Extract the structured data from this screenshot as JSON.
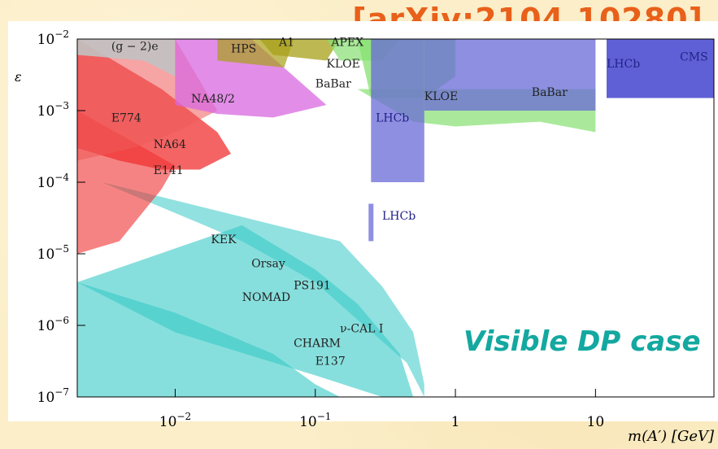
{
  "reference": "[arXiv:2104.10280]",
  "case_label": "Visible DP case",
  "chart_data": {
    "type": "area",
    "title": "",
    "xlabel": "m(A′) [GeV]",
    "ylabel": "ε",
    "xscale": "log",
    "yscale": "log",
    "xlim": [
      0.002,
      70
    ],
    "ylim": [
      1e-07,
      0.01
    ],
    "xticks": [
      {
        "value": 0.01,
        "label": "10^-2"
      },
      {
        "value": 0.1,
        "label": "10^-1"
      },
      {
        "value": 1,
        "label": "1"
      },
      {
        "value": 10,
        "label": "10"
      }
    ],
    "yticks": [
      {
        "value": 0.01,
        "label": "10^-2"
      },
      {
        "value": 0.001,
        "label": "10^-3"
      },
      {
        "value": 0.0001,
        "label": "10^-4"
      },
      {
        "value": 1e-05,
        "label": "10^-5"
      },
      {
        "value": 1e-06,
        "label": "10^-6"
      },
      {
        "value": 1e-07,
        "label": "10^-7"
      }
    ],
    "colors": {
      "beam_dump": "#37c9c7",
      "e774": "#f03030",
      "na64": "#ee5a5a",
      "gm2": "#c2c2c2",
      "na48": "#d868e0",
      "hps": "#a8a018",
      "babar": "#86e070",
      "lhcb": "#6a6ad8",
      "cms": "#3838cc",
      "overlap": "#3c7080"
    },
    "regions": [
      {
        "label": "E137",
        "points": [
          [
            0.002,
            1e-07
          ],
          [
            0.002,
            4e-06
          ],
          [
            0.01,
            1.5e-06
          ],
          [
            0.05,
            4e-07
          ],
          [
            0.1,
            1.5e-07
          ],
          [
            0.15,
            1e-07
          ]
        ]
      },
      {
        "label": "CHARM",
        "points": [
          [
            0.002,
            4e-06
          ],
          [
            0.01,
            8e-07
          ],
          [
            0.1,
            2e-07
          ],
          [
            0.3,
            1e-07
          ],
          [
            0.5,
            1e-07
          ],
          [
            0.4,
            4e-07
          ],
          [
            0.2,
            2e-06
          ],
          [
            0.1,
            6e-06
          ],
          [
            0.03,
            2.5e-05
          ]
        ]
      },
      {
        "label": "ν-CAL I",
        "points": [
          [
            0.003,
            0.0001
          ],
          [
            0.03,
            1.5e-05
          ],
          [
            0.1,
            4e-06
          ],
          [
            0.2,
            1.2e-06
          ],
          [
            0.45,
            3e-07
          ],
          [
            0.6,
            1e-07
          ],
          [
            0.6,
            1.5e-07
          ],
          [
            0.5,
            8e-07
          ],
          [
            0.3,
            3.5e-06
          ],
          [
            0.15,
            1.5e-05
          ]
        ]
      },
      {
        "label": "E774",
        "points": [
          [
            0.002,
            0.01
          ],
          [
            0.008,
            0.002
          ],
          [
            0.02,
            0.0005
          ],
          [
            0.025,
            0.00025
          ],
          [
            0.015,
            0.00015
          ],
          [
            0.008,
            0.00015
          ],
          [
            0.004,
            0.0002
          ],
          [
            0.002,
            0.0003
          ]
        ]
      },
      {
        "label": "E141",
        "points": [
          [
            0.002,
            0.001
          ],
          [
            0.006,
            0.0003
          ],
          [
            0.01,
            0.00017
          ],
          [
            0.008,
            8e-05
          ],
          [
            0.004,
            1.5e-05
          ],
          [
            0.002,
            1e-05
          ]
        ]
      },
      {
        "label": "NA64",
        "points": [
          [
            0.002,
            0.01
          ],
          [
            0.01,
            0.01
          ],
          [
            0.02,
            0.001
          ],
          [
            0.01,
            0.0005
          ],
          [
            0.005,
            0.0003
          ],
          [
            0.002,
            0.0002
          ]
        ]
      },
      {
        "label": "(g − 2)e",
        "points": [
          [
            0.002,
            0.01
          ],
          [
            0.01,
            0.01
          ],
          [
            0.01,
            0.003
          ],
          [
            0.006,
            0.005
          ],
          [
            0.002,
            0.006
          ]
        ]
      },
      {
        "label": "NA48/2",
        "points": [
          [
            0.01,
            0.01
          ],
          [
            0.035,
            0.01
          ],
          [
            0.12,
            0.0012
          ],
          [
            0.05,
            0.0008
          ],
          [
            0.02,
            0.0009
          ],
          [
            0.01,
            0.0012
          ]
        ]
      },
      {
        "label": "HPS",
        "points": [
          [
            0.02,
            0.01
          ],
          [
            0.07,
            0.01
          ],
          [
            0.06,
            0.004
          ],
          [
            0.02,
            0.005
          ]
        ]
      },
      {
        "label": "A1",
        "points": [
          [
            0.04,
            0.01
          ],
          [
            0.15,
            0.01
          ],
          [
            0.12,
            0.005
          ],
          [
            0.05,
            0.006
          ]
        ]
      },
      {
        "label": "APEX",
        "points": [
          [
            0.12,
            0.01
          ],
          [
            0.4,
            0.01
          ],
          [
            0.3,
            0.005
          ],
          [
            0.15,
            0.005
          ]
        ]
      },
      {
        "label": "KLOE",
        "points": [
          [
            0.2,
            0.01
          ],
          [
            1,
            0.01
          ],
          [
            1,
            0.003
          ],
          [
            0.6,
            0.0015
          ],
          [
            0.25,
            0.0015
          ]
        ]
      },
      {
        "label": "BaBar",
        "points": [
          [
            0.2,
            0.002
          ],
          [
            10,
            0.002
          ],
          [
            10,
            0.0005
          ],
          [
            4,
            0.0007
          ],
          [
            1,
            0.0006
          ],
          [
            0.5,
            0.0007
          ]
        ]
      },
      {
        "label": "LHCb",
        "points": [
          [
            0.25,
            0.01
          ],
          [
            0.6,
            0.01
          ],
          [
            0.6,
            0.0001
          ],
          [
            0.25,
            0.0001
          ]
        ]
      },
      {
        "label": "LHCb",
        "points": [
          [
            0.6,
            0.01
          ],
          [
            10,
            0.01
          ],
          [
            10,
            0.001
          ],
          [
            0.6,
            0.001
          ]
        ]
      },
      {
        "label": "LHCb",
        "points": [
          [
            0.24,
            5e-05
          ],
          [
            0.26,
            5e-05
          ],
          [
            0.26,
            1.5e-05
          ],
          [
            0.24,
            1.5e-05
          ]
        ]
      },
      {
        "label": "CMS",
        "points": [
          [
            12,
            0.01
          ],
          [
            70,
            0.01
          ],
          [
            70,
            0.0015
          ],
          [
            12,
            0.0015
          ]
        ]
      }
    ],
    "annotations": [
      {
        "text": "(g − 2)e",
        "x": 0.0035,
        "y": 0.007
      },
      {
        "text": "HPS",
        "x": 0.025,
        "y": 0.0065
      },
      {
        "text": "A1",
        "x": 0.055,
        "y": 0.008
      },
      {
        "text": "APEX",
        "x": 0.13,
        "y": 0.008
      },
      {
        "text": "KLOE",
        "x": 0.12,
        "y": 0.004
      },
      {
        "text": "BaBar",
        "x": 0.1,
        "y": 0.0021
      },
      {
        "text": "NA48/2",
        "x": 0.013,
        "y": 0.0013
      },
      {
        "text": "KLOE",
        "x": 0.6,
        "y": 0.0014
      },
      {
        "text": "BaBar",
        "x": 3.5,
        "y": 0.0016
      },
      {
        "text": "LHCb",
        "x": 12,
        "y": 0.004
      },
      {
        "text": "CMS",
        "x": 40,
        "y": 0.005
      },
      {
        "text": "LHCb",
        "x": 0.27,
        "y": 0.0007
      },
      {
        "text": "LHCb",
        "x": 0.3,
        "y": 3e-05
      },
      {
        "text": "E774",
        "x": 0.0035,
        "y": 0.0007
      },
      {
        "text": "NA64",
        "x": 0.007,
        "y": 0.0003
      },
      {
        "text": "E141",
        "x": 0.007,
        "y": 0.00013
      },
      {
        "text": "KEK",
        "x": 0.018,
        "y": 1.4e-05
      },
      {
        "text": "Orsay",
        "x": 0.035,
        "y": 6.5e-06
      },
      {
        "text": "PS191",
        "x": 0.07,
        "y": 3.2e-06
      },
      {
        "text": "NOMAD",
        "x": 0.03,
        "y": 2.2e-06
      },
      {
        "text": "ν-CAL I",
        "x": 0.15,
        "y": 8e-07
      },
      {
        "text": "CHARM",
        "x": 0.07,
        "y": 5e-07
      },
      {
        "text": "E137",
        "x": 0.1,
        "y": 2.8e-07
      }
    ]
  }
}
